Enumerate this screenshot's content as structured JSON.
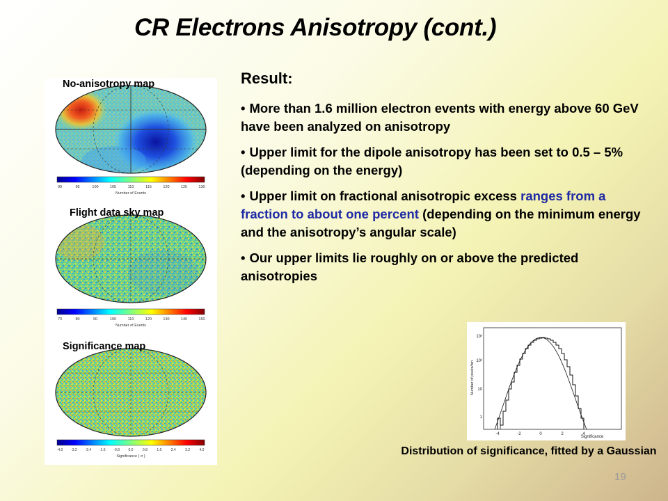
{
  "slide": {
    "title": "CR Electrons Anisotropy (cont.)",
    "page_number": "19"
  },
  "maps": {
    "no_anisotropy_label": "No-anisotropy  map",
    "flight_label": "Flight data sky map",
    "significance_label": "Significance  map",
    "colorbar1": {
      "ticks": [
        "90",
        "95",
        "100",
        "105",
        "110",
        "115",
        "120",
        "125",
        "130"
      ],
      "title": "Number of Events"
    },
    "colorbar2": {
      "ticks": [
        "70",
        "80",
        "90",
        "100",
        "110",
        "120",
        "130",
        "140",
        "150"
      ],
      "title": "Number of Events"
    },
    "colorbar3": {
      "ticks": [
        "-4.0",
        "-3.2",
        "-2.4",
        "-1.6",
        "-0.8",
        "0.0",
        "0.8",
        "1.6",
        "2.4",
        "3.2",
        "4.0"
      ],
      "title": "Significance ( σ )"
    }
  },
  "result": {
    "heading": "Result:",
    "bullets": [
      {
        "text": "More than 1.6 million electron events with energy above 60 GeV have been analyzed on anisotropy"
      },
      {
        "text": "Upper limit for the dipole anisotropy has been set to 0.5 – 5% (depending on the energy)"
      },
      {
        "pre": "Upper limit on fractional anisotropic excess ",
        "highlight": "ranges from a fraction to about one percent",
        "post": " (depending on the minimum energy and the anisotropy’s angular scale)"
      },
      {
        "text": "Our upper limits lie roughly on or above the predicted anisotropies"
      }
    ]
  },
  "histogram": {
    "xlabel": "Significance",
    "ylabel": "Number of pixels/bin",
    "x_ticks": [
      "-4",
      "-2",
      "0",
      "2",
      "4"
    ],
    "y_ticks": [
      "10³",
      "10²",
      "10",
      "1"
    ],
    "caption": "Distribution of significance, fitted by a Gaussian"
  },
  "colors": {
    "highlight_text": "#1f2aa5",
    "background_start": "#ffffff",
    "background_end": "#cdb48c"
  }
}
